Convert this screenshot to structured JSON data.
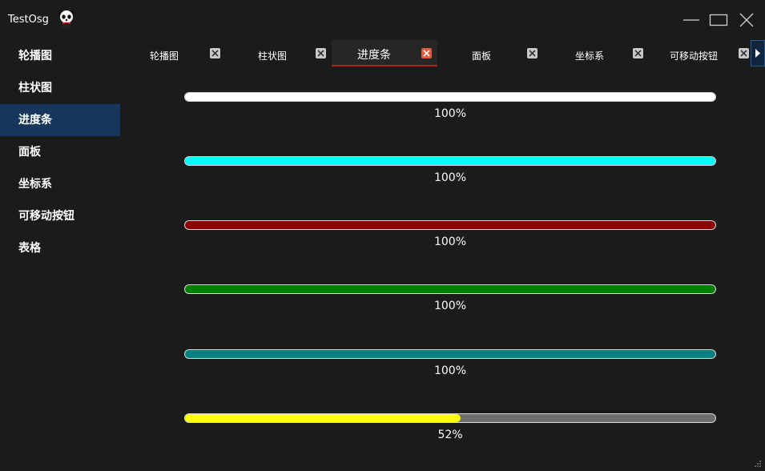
{
  "window": {
    "title": "TestOsg",
    "logo_icon": "panda-icon",
    "controls": [
      "minimize-icon",
      "maximize-icon",
      "close-icon"
    ]
  },
  "sidebar": {
    "items": [
      {
        "label": "轮播图"
      },
      {
        "label": "柱状图"
      },
      {
        "label": "进度条",
        "active": true
      },
      {
        "label": "面板"
      },
      {
        "label": "坐标系"
      },
      {
        "label": "可移动按钮"
      },
      {
        "label": "表格"
      }
    ]
  },
  "tabs": {
    "items": [
      {
        "label": "轮播图"
      },
      {
        "label": "柱状图"
      },
      {
        "label": "进度条",
        "active": true
      },
      {
        "label": "面板"
      },
      {
        "label": "坐标系"
      },
      {
        "label": "可移动按钮"
      }
    ],
    "scroll_icon": "arrow-right-icon"
  },
  "progress_bars": [
    {
      "value": 100,
      "label": "100%",
      "color": "#ffffff"
    },
    {
      "value": 100,
      "label": "100%",
      "color": "#00ffff"
    },
    {
      "value": 100,
      "label": "100%",
      "color": "#8b0000"
    },
    {
      "value": 100,
      "label": "100%",
      "color": "#008000"
    },
    {
      "value": 100,
      "label": "100%",
      "color": "#008080"
    },
    {
      "value": 52,
      "label": "52%",
      "color": "#ffff00"
    }
  ],
  "colors": {
    "background": "#1b1b1b",
    "sidebar_active": "#16365b",
    "tab_active_border": "#b02020",
    "track": "#6e6e6e"
  }
}
